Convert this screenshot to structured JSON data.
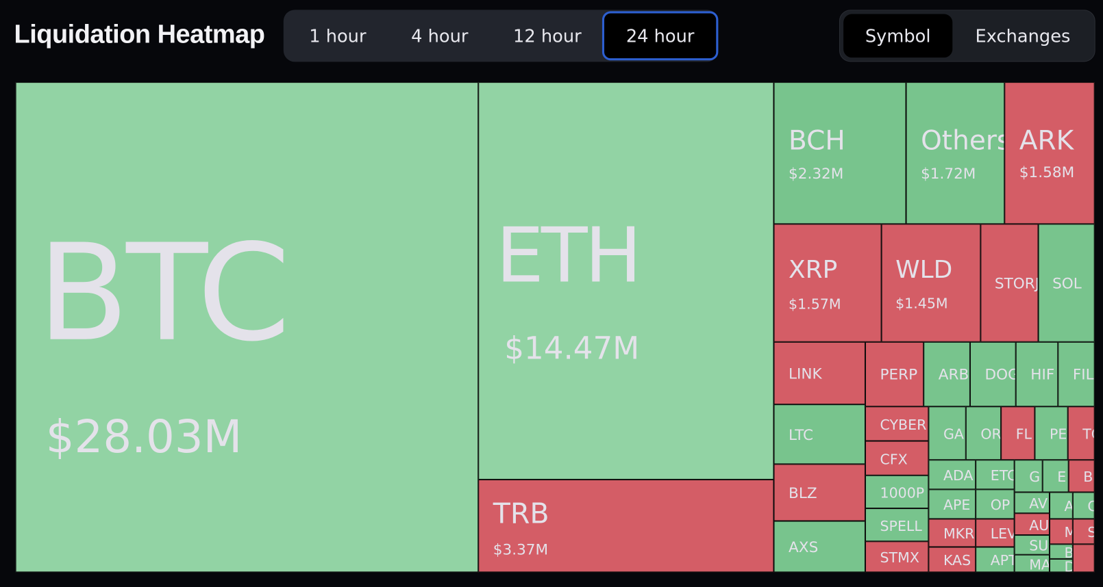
{
  "header": {
    "title": "Liquidation Heatmap"
  },
  "time_tabs": [
    {
      "label": "1 hour"
    },
    {
      "label": "4 hour"
    },
    {
      "label": "12 hour"
    },
    {
      "label": "24 hour",
      "selected": true
    }
  ],
  "mode_tabs": [
    {
      "label": "Symbol",
      "selected": true
    },
    {
      "label": "Exchanges"
    }
  ],
  "tiles": [
    {
      "label": "BTC",
      "value": "$28.03M",
      "color": "#92d3a4"
    },
    {
      "label": "ETH",
      "value": "$14.47M",
      "color": "#92d3a4"
    },
    {
      "label": "TRB",
      "value": "$3.37M",
      "color": "#d45d66"
    },
    {
      "label": "BCH",
      "value": "$2.32M",
      "color": "#78c48d"
    },
    {
      "label": "Others",
      "value": "$1.72M",
      "color": "#78c48d"
    },
    {
      "label": "ARK",
      "value": "$1.58M",
      "color": "#d45d66"
    },
    {
      "label": "XRP",
      "value": "$1.57M",
      "color": "#d45d66"
    },
    {
      "label": "WLD",
      "value": "$1.45M",
      "color": "#d45d66"
    },
    {
      "label": "STORJ",
      "color": "#d45d66"
    },
    {
      "label": "SOL",
      "color": "#78c48d"
    },
    {
      "label": "LINK",
      "color": "#d45d66"
    },
    {
      "label": "PERP",
      "color": "#d45d66"
    },
    {
      "label": "ARB",
      "color": "#78c48d"
    },
    {
      "label": "DOG",
      "color": "#78c48d"
    },
    {
      "label": "HIF",
      "color": "#78c48d"
    },
    {
      "label": "FIL",
      "color": "#78c48d"
    },
    {
      "label": "LTC",
      "color": "#78c48d"
    },
    {
      "label": "BLZ",
      "color": "#d45d66"
    },
    {
      "label": "AXS",
      "color": "#78c48d"
    },
    {
      "label": "CYBER",
      "color": "#d45d66"
    },
    {
      "label": "CFX",
      "color": "#d45d66"
    },
    {
      "label": "1000P",
      "color": "#78c48d"
    },
    {
      "label": "SPELL",
      "color": "#78c48d"
    },
    {
      "label": "STMX",
      "color": "#d45d66"
    },
    {
      "label": "GA",
      "color": "#78c48d"
    },
    {
      "label": "OR",
      "color": "#78c48d"
    },
    {
      "label": "FL",
      "color": "#d45d66"
    },
    {
      "label": "PE",
      "color": "#78c48d"
    },
    {
      "label": "TO",
      "color": "#d45d66"
    },
    {
      "label": "ADA",
      "color": "#78c48d"
    },
    {
      "label": "ETC",
      "color": "#78c48d"
    },
    {
      "label": "G",
      "color": "#78c48d"
    },
    {
      "label": "E",
      "color": "#78c48d"
    },
    {
      "label": "B",
      "color": "#d45d66"
    },
    {
      "label": "APE",
      "color": "#78c48d"
    },
    {
      "label": "OP",
      "color": "#78c48d"
    },
    {
      "label": "AV",
      "color": "#78c48d"
    },
    {
      "label": "A",
      "color": "#78c48d"
    },
    {
      "label": "C",
      "color": "#78c48d"
    },
    {
      "label": "MKR",
      "color": "#d45d66"
    },
    {
      "label": "LEV",
      "color": "#d45d66"
    },
    {
      "label": "AU",
      "color": "#d45d66"
    },
    {
      "label": "M",
      "color": "#d45d66"
    },
    {
      "label": "S",
      "color": "#d45d66"
    },
    {
      "label": "SU",
      "color": "#78c48d"
    },
    {
      "label": "BI",
      "color": "#78c48d"
    },
    {
      "label": "KAS",
      "color": "#d45d66"
    },
    {
      "label": "APT",
      "color": "#78c48d"
    },
    {
      "label": "MA",
      "color": "#78c48d"
    },
    {
      "label": "DO",
      "color": "#78c48d"
    },
    {
      "color": "#d45d66"
    }
  ]
}
